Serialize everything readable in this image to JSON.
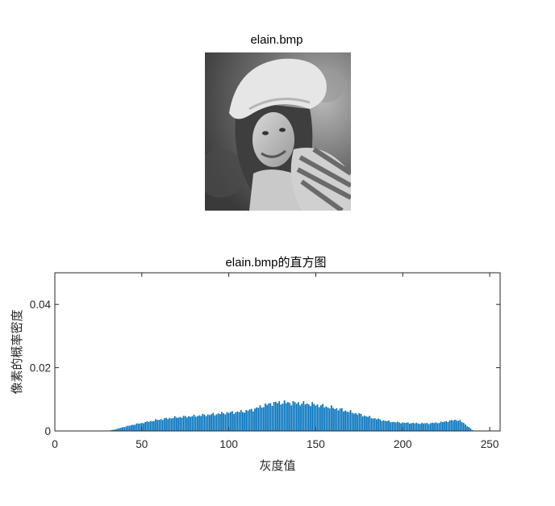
{
  "image_panel": {
    "title": "elain.bmp"
  },
  "chart_data": {
    "type": "bar",
    "title": "elain.bmp的直方图",
    "xlabel": "灰度值",
    "ylabel": "像素的概率密度",
    "xlim": [
      0,
      256
    ],
    "ylim": [
      0,
      0.05
    ],
    "x_ticks": [
      0,
      50,
      100,
      150,
      200,
      250
    ],
    "y_ticks": [
      0,
      0.02,
      0.04
    ],
    "x_tick_labels": [
      "0",
      "50",
      "100",
      "150",
      "200",
      "250"
    ],
    "y_tick_labels": [
      "0",
      "0.02",
      "0.04"
    ],
    "bar_color": "#0072BD",
    "grid": false,
    "profile": {
      "x": [
        0,
        31,
        32,
        34,
        36,
        38,
        40,
        43,
        46,
        50,
        55,
        60,
        65,
        70,
        75,
        80,
        85,
        90,
        95,
        100,
        105,
        110,
        115,
        120,
        125,
        130,
        135,
        140,
        145,
        150,
        155,
        160,
        165,
        170,
        175,
        180,
        185,
        190,
        195,
        200,
        205,
        210,
        215,
        220,
        225,
        228,
        231,
        233,
        235,
        237,
        239,
        240,
        241,
        255
      ],
      "y": [
        0,
        0,
        0.0002,
        0.0004,
        0.0007,
        0.001,
        0.0013,
        0.0017,
        0.0021,
        0.0025,
        0.0031,
        0.0036,
        0.004,
        0.0043,
        0.0045,
        0.0047,
        0.005,
        0.0052,
        0.0055,
        0.0058,
        0.006,
        0.0063,
        0.007,
        0.008,
        0.0088,
        0.009,
        0.0089,
        0.0088,
        0.0086,
        0.0083,
        0.0078,
        0.0073,
        0.0067,
        0.006,
        0.0053,
        0.0045,
        0.0038,
        0.0032,
        0.0028,
        0.0026,
        0.0025,
        0.0024,
        0.0024,
        0.0026,
        0.003,
        0.0033,
        0.0035,
        0.0032,
        0.0025,
        0.0016,
        0.0008,
        0.0003,
        0,
        0
      ]
    }
  }
}
